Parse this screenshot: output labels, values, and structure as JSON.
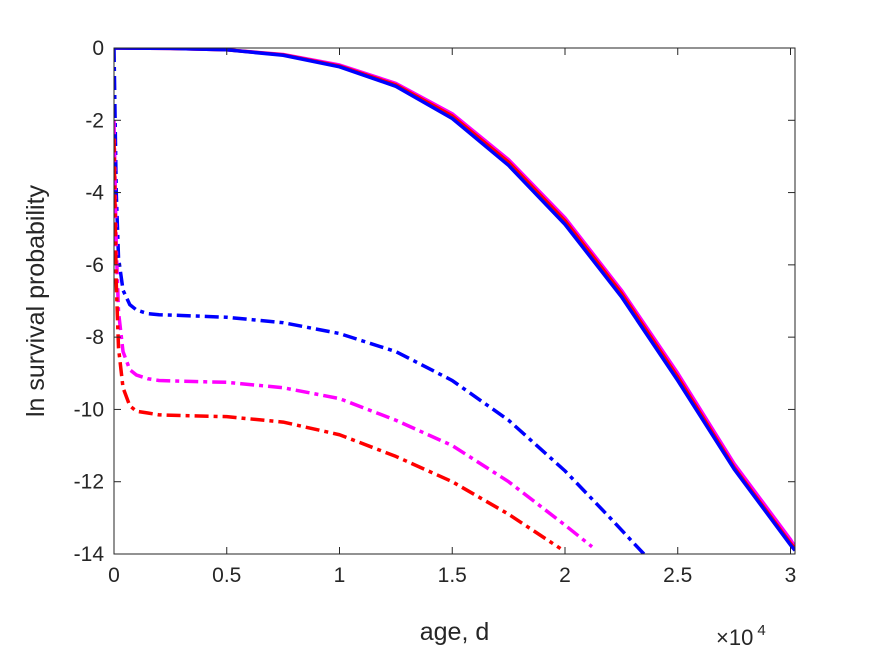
{
  "chart_data": {
    "type": "line",
    "xlabel": "age, d",
    "ylabel": "ln survival probability",
    "x_multiplier": {
      "base": "×10",
      "exponent": "4"
    },
    "xlim": [
      0,
      30200
    ],
    "ylim": [
      -14,
      0
    ],
    "xticks": [
      0,
      5000,
      10000,
      15000,
      20000,
      25000,
      30000
    ],
    "xtick_labels": [
      "0",
      "0.5",
      "1",
      "1.5",
      "2",
      "2.5",
      "3"
    ],
    "yticks": [
      0,
      -2,
      -4,
      -6,
      -8,
      -10,
      -12,
      -14
    ],
    "ytick_labels": [
      "0",
      "-2",
      "-4",
      "-6",
      "-8",
      "-10",
      "-12",
      "-14"
    ],
    "grid": false,
    "box": true,
    "series": [
      {
        "color": "#ff00ff",
        "style": "solid",
        "x": [
          0,
          2500,
          5000,
          7500,
          10000,
          12500,
          15000,
          17500,
          20000,
          22500,
          25000,
          27500,
          30000,
          30200
        ],
        "y": [
          0,
          -0.01,
          -0.05,
          -0.18,
          -0.47,
          -0.98,
          -1.82,
          -3.09,
          -4.7,
          -6.7,
          -9.0,
          -11.5,
          -13.6,
          -13.8
        ]
      },
      {
        "color": "#ff0000",
        "style": "solid",
        "x": [
          0,
          2500,
          5000,
          7500,
          10000,
          12500,
          15000,
          17500,
          20000,
          22500,
          25000,
          27500,
          30000,
          30200
        ],
        "y": [
          0,
          -0.01,
          -0.05,
          -0.19,
          -0.5,
          -1.02,
          -1.88,
          -3.16,
          -4.78,
          -6.78,
          -9.1,
          -11.6,
          -13.7,
          -13.85
        ]
      },
      {
        "color": "#0000ff",
        "style": "solid",
        "x": [
          0,
          2500,
          5000,
          7500,
          10000,
          12500,
          15000,
          17500,
          20000,
          22500,
          25000,
          27500,
          30000,
          30200
        ],
        "y": [
          0,
          -0.01,
          -0.05,
          -0.2,
          -0.52,
          -1.06,
          -1.95,
          -3.25,
          -4.88,
          -6.88,
          -9.2,
          -11.65,
          -13.75,
          -13.9
        ]
      },
      {
        "color": "#0000ff",
        "style": "dashdot",
        "x": [
          0,
          50,
          100,
          200,
          400,
          700,
          1000,
          1500,
          2000,
          3000,
          5000,
          7500,
          10000,
          12500,
          15000,
          17500,
          20000,
          22000,
          23500
        ],
        "y": [
          0,
          -2.0,
          -4.0,
          -5.8,
          -6.7,
          -7.1,
          -7.25,
          -7.35,
          -7.38,
          -7.4,
          -7.45,
          -7.6,
          -7.9,
          -8.4,
          -9.2,
          -10.3,
          -11.7,
          -13.0,
          -14.0
        ]
      },
      {
        "color": "#ff00ff",
        "style": "dashdot",
        "x": [
          0,
          100,
          200,
          400,
          700,
          1000,
          1500,
          2000,
          3000,
          5000,
          7500,
          10000,
          12500,
          15000,
          17500,
          20000,
          21200
        ],
        "y": [
          -2.0,
          -5.5,
          -7.3,
          -8.4,
          -8.9,
          -9.05,
          -9.15,
          -9.2,
          -9.22,
          -9.25,
          -9.4,
          -9.7,
          -10.3,
          -11.0,
          -12.0,
          -13.2,
          -13.8
        ]
      },
      {
        "color": "#ff0000",
        "style": "dashdot",
        "x": [
          0,
          100,
          200,
          400,
          700,
          1000,
          1500,
          2000,
          3000,
          5000,
          7500,
          10000,
          12500,
          15000,
          17500,
          19800
        ],
        "y": [
          -2.5,
          -6.5,
          -8.3,
          -9.4,
          -9.9,
          -10.05,
          -10.1,
          -10.15,
          -10.17,
          -10.2,
          -10.35,
          -10.7,
          -11.3,
          -12.0,
          -12.9,
          -13.85
        ]
      }
    ]
  }
}
